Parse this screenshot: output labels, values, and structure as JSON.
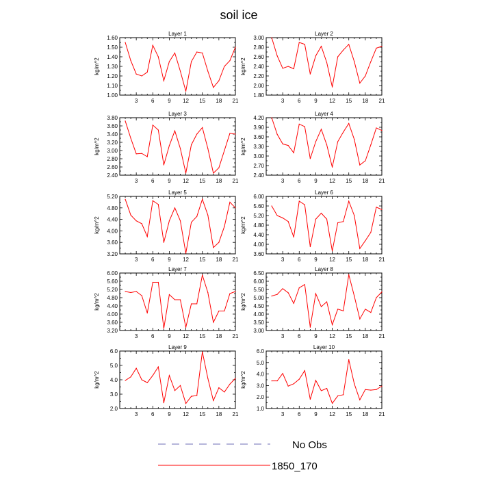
{
  "title": "soil ice",
  "legend": [
    {
      "label": "No Obs",
      "color": "#6b6bb5",
      "style": "dashed"
    },
    {
      "label": "1850_170",
      "color": "#ff0000",
      "style": "solid"
    }
  ],
  "chart_data": [
    {
      "type": "line",
      "title": "Layer 1",
      "ylabel": "kg/m^2",
      "xlim": [
        0,
        21
      ],
      "ylim": [
        1.0,
        1.6
      ],
      "xticks": [
        3,
        6,
        9,
        12,
        15,
        18,
        21
      ],
      "yticks": [
        "1.00",
        "1.10",
        "1.20",
        "1.30",
        "1.40",
        "1.50",
        "1.60"
      ],
      "x": [
        1,
        2,
        3,
        4,
        5,
        6,
        7,
        8,
        9,
        10,
        11,
        12,
        13,
        14,
        15,
        16,
        17,
        18,
        19,
        20,
        21
      ],
      "series": [
        {
          "name": "1850_170",
          "color": "#ff0000",
          "values": [
            1.55,
            1.36,
            1.22,
            1.2,
            1.24,
            1.52,
            1.4,
            1.15,
            1.35,
            1.44,
            1.25,
            1.04,
            1.35,
            1.45,
            1.44,
            1.25,
            1.08,
            1.15,
            1.3,
            1.36,
            1.5
          ]
        }
      ]
    },
    {
      "type": "line",
      "title": "Layer 2",
      "ylabel": "kg/m^2",
      "xlim": [
        0,
        21
      ],
      "ylim": [
        1.8,
        3.0
      ],
      "xticks": [
        3,
        6,
        9,
        12,
        15,
        18,
        21
      ],
      "yticks": [
        "1.80",
        "2.00",
        "2.20",
        "2.40",
        "2.60",
        "2.80",
        "3.00"
      ],
      "x": [
        1,
        2,
        3,
        4,
        5,
        6,
        7,
        8,
        9,
        10,
        11,
        12,
        13,
        14,
        15,
        16,
        17,
        18,
        19,
        20,
        21
      ],
      "series": [
        {
          "name": "1850_170",
          "color": "#ff0000",
          "values": [
            3.0,
            2.62,
            2.36,
            2.4,
            2.35,
            2.9,
            2.86,
            2.24,
            2.62,
            2.82,
            2.48,
            1.97,
            2.6,
            2.74,
            2.86,
            2.5,
            2.05,
            2.2,
            2.5,
            2.78,
            2.82
          ]
        }
      ]
    },
    {
      "type": "line",
      "title": "Layer 3",
      "ylabel": "kg/m^2",
      "xlim": [
        0,
        21
      ],
      "ylim": [
        2.4,
        3.8
      ],
      "xticks": [
        3,
        6,
        9,
        12,
        15,
        18,
        21
      ],
      "yticks": [
        "2.40",
        "2.60",
        "2.80",
        "3.00",
        "3.20",
        "3.40",
        "3.60",
        "3.80"
      ],
      "x": [
        1,
        2,
        3,
        4,
        5,
        6,
        7,
        8,
        9,
        10,
        11,
        12,
        13,
        14,
        15,
        16,
        17,
        18,
        19,
        20,
        21
      ],
      "series": [
        {
          "name": "1850_170",
          "color": "#ff0000",
          "values": [
            3.72,
            3.3,
            2.92,
            2.93,
            2.85,
            3.62,
            3.5,
            2.65,
            3.12,
            3.48,
            3.05,
            2.45,
            3.14,
            3.4,
            3.56,
            3.05,
            2.45,
            2.58,
            3.0,
            3.42,
            3.4
          ]
        }
      ]
    },
    {
      "type": "line",
      "title": "Layer 4",
      "ylabel": "kg/m^2",
      "xlim": [
        0,
        21
      ],
      "ylim": [
        2.4,
        4.2
      ],
      "xticks": [
        3,
        6,
        9,
        12,
        15,
        18,
        21
      ],
      "yticks": [
        "2.40",
        "2.70",
        "3.00",
        "3.30",
        "3.60",
        "3.90",
        "4.20"
      ],
      "x": [
        1,
        2,
        3,
        4,
        5,
        6,
        7,
        8,
        9,
        10,
        11,
        12,
        13,
        14,
        15,
        16,
        17,
        18,
        19,
        20,
        21
      ],
      "series": [
        {
          "name": "1850_170",
          "color": "#ff0000",
          "values": [
            4.2,
            3.68,
            3.38,
            3.33,
            3.1,
            4.0,
            3.92,
            2.92,
            3.45,
            3.84,
            3.35,
            2.65,
            3.45,
            3.75,
            4.02,
            3.52,
            2.72,
            2.85,
            3.35,
            3.88,
            3.8
          ]
        }
      ]
    },
    {
      "type": "line",
      "title": "Layer 5",
      "ylabel": "kg/m^2",
      "xlim": [
        0,
        21
      ],
      "ylim": [
        3.2,
        5.2
      ],
      "xticks": [
        3,
        6,
        9,
        12,
        15,
        18,
        21
      ],
      "yticks": [
        "3.20",
        "3.60",
        "4.00",
        "4.40",
        "4.80",
        "5.20"
      ],
      "x": [
        1,
        2,
        3,
        4,
        5,
        6,
        7,
        8,
        9,
        10,
        11,
        12,
        13,
        14,
        15,
        16,
        17,
        18,
        19,
        20,
        21
      ],
      "series": [
        {
          "name": "1850_170",
          "color": "#ff0000",
          "values": [
            5.1,
            4.55,
            4.35,
            4.25,
            3.8,
            5.05,
            4.92,
            3.6,
            4.35,
            4.8,
            4.35,
            3.22,
            4.3,
            4.5,
            5.1,
            4.55,
            3.42,
            3.6,
            4.15,
            5.0,
            4.8
          ]
        }
      ]
    },
    {
      "type": "line",
      "title": "Layer 6",
      "ylabel": "kg/m^2",
      "xlim": [
        0,
        21
      ],
      "ylim": [
        3.6,
        6.0
      ],
      "xticks": [
        3,
        6,
        9,
        12,
        15,
        18,
        21
      ],
      "yticks": [
        "3.60",
        "4.00",
        "4.40",
        "4.80",
        "5.20",
        "5.60",
        "6.00"
      ],
      "x": [
        1,
        2,
        3,
        4,
        5,
        6,
        7,
        8,
        9,
        10,
        11,
        12,
        13,
        14,
        15,
        16,
        17,
        18,
        19,
        20,
        21
      ],
      "series": [
        {
          "name": "1850_170",
          "color": "#ff0000",
          "values": [
            5.6,
            5.2,
            5.1,
            4.95,
            4.3,
            5.8,
            5.65,
            3.9,
            5.05,
            5.3,
            5.05,
            3.72,
            4.9,
            4.95,
            5.8,
            5.2,
            3.82,
            4.15,
            4.5,
            5.55,
            5.45
          ]
        }
      ]
    },
    {
      "type": "line",
      "title": "Layer 7",
      "ylabel": "kg/m^2",
      "xlim": [
        0,
        21
      ],
      "ylim": [
        3.2,
        6.0
      ],
      "xticks": [
        3,
        6,
        9,
        12,
        15,
        18,
        21
      ],
      "yticks": [
        "3.20",
        "3.60",
        "4.00",
        "4.40",
        "4.80",
        "5.20",
        "5.60",
        "6.00"
      ],
      "x": [
        1,
        2,
        3,
        4,
        5,
        6,
        7,
        8,
        9,
        10,
        11,
        12,
        13,
        14,
        15,
        16,
        17,
        18,
        19,
        20,
        21
      ],
      "series": [
        {
          "name": "1850_170",
          "color": "#ff0000",
          "values": [
            5.1,
            5.05,
            5.1,
            4.9,
            4.05,
            5.55,
            5.55,
            3.3,
            4.95,
            4.7,
            4.7,
            3.35,
            4.5,
            4.5,
            5.9,
            5.05,
            3.6,
            4.15,
            4.15,
            5.0,
            5.1
          ]
        }
      ]
    },
    {
      "type": "line",
      "title": "Layer 8",
      "ylabel": "kg/m^2",
      "xlim": [
        0,
        21
      ],
      "ylim": [
        3.0,
        6.5
      ],
      "xticks": [
        3,
        6,
        9,
        12,
        15,
        18,
        21
      ],
      "yticks": [
        "3.00",
        "3.50",
        "4.00",
        "4.50",
        "5.00",
        "5.50",
        "6.00",
        "6.50"
      ],
      "x": [
        1,
        2,
        3,
        4,
        5,
        6,
        7,
        8,
        9,
        10,
        11,
        12,
        13,
        14,
        15,
        16,
        17,
        18,
        19,
        20,
        21
      ],
      "series": [
        {
          "name": "1850_170",
          "color": "#ff0000",
          "values": [
            5.1,
            5.2,
            5.55,
            5.3,
            4.65,
            5.6,
            5.8,
            3.2,
            5.25,
            4.45,
            4.75,
            3.35,
            4.3,
            4.2,
            6.4,
            5.1,
            3.7,
            4.3,
            4.1,
            5.0,
            5.35
          ]
        }
      ]
    },
    {
      "type": "line",
      "title": "Layer 9",
      "ylabel": "kg/m^2",
      "xlim": [
        0,
        21
      ],
      "ylim": [
        2.0,
        6.0
      ],
      "xticks": [
        3,
        6,
        9,
        12,
        15,
        18,
        21
      ],
      "yticks": [
        "2.0",
        "3.0",
        "4.0",
        "5.0",
        "6.0"
      ],
      "x": [
        1,
        2,
        3,
        4,
        5,
        6,
        7,
        8,
        9,
        10,
        11,
        12,
        13,
        14,
        15,
        16,
        17,
        18,
        19,
        20,
        21
      ],
      "series": [
        {
          "name": "1850_170",
          "color": "#ff0000",
          "values": [
            3.95,
            4.2,
            4.8,
            4.0,
            3.8,
            4.3,
            4.9,
            2.4,
            4.3,
            3.25,
            3.6,
            2.35,
            2.85,
            2.9,
            5.95,
            4.1,
            2.55,
            3.45,
            3.15,
            3.7,
            4.1
          ]
        }
      ]
    },
    {
      "type": "line",
      "title": "Layer 10",
      "ylabel": "kg/m^2",
      "xlim": [
        0,
        21
      ],
      "ylim": [
        1.0,
        6.0
      ],
      "xticks": [
        3,
        6,
        9,
        12,
        15,
        18,
        21
      ],
      "yticks": [
        "1.0",
        "2.0",
        "3.0",
        "4.0",
        "5.0",
        "6.0"
      ],
      "x": [
        1,
        2,
        3,
        4,
        5,
        6,
        7,
        8,
        9,
        10,
        11,
        12,
        13,
        14,
        15,
        16,
        17,
        18,
        19,
        20,
        21
      ],
      "series": [
        {
          "name": "1850_170",
          "color": "#ff0000",
          "values": [
            3.4,
            3.4,
            4.05,
            2.95,
            3.15,
            3.55,
            4.3,
            1.8,
            3.45,
            2.55,
            2.75,
            1.45,
            2.1,
            2.2,
            5.25,
            3.15,
            1.75,
            2.65,
            2.6,
            2.65,
            2.95
          ]
        }
      ]
    }
  ]
}
